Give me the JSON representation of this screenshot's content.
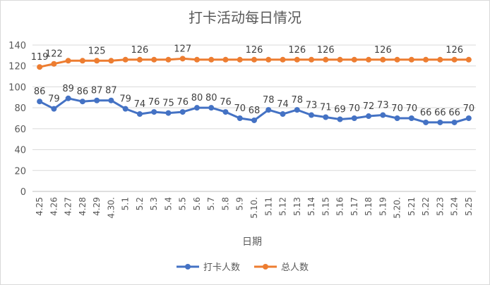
{
  "chart_data": {
    "type": "line",
    "title": "打卡活动每日情况",
    "xlabel": "日期",
    "ylabel": "",
    "ylim": [
      0,
      140
    ],
    "yticks": [
      0,
      20,
      40,
      60,
      80,
      100,
      120,
      140
    ],
    "grid": true,
    "legend": "bottom",
    "categories": [
      "4.25",
      "4.26",
      "4.27",
      "4.28",
      "4.29",
      "4.30.",
      "5.1",
      "5.2",
      "5.3",
      "5.4",
      "5.5",
      "5.6",
      "5.7",
      "5.8",
      "5.9",
      "5.10.",
      "5.11",
      "5.12",
      "5.13",
      "5.14",
      "5.15",
      "5.16",
      "5.17",
      "5.18",
      "5.19",
      "5.20.",
      "5.21",
      "5.22",
      "5.23",
      "5.24",
      "5.25"
    ],
    "series": [
      {
        "name": "打卡人数",
        "color": "#4472c4",
        "values": [
          86,
          79,
          89,
          86,
          87,
          87,
          79,
          74,
          76,
          75,
          76,
          80,
          80,
          76,
          70,
          68,
          78,
          74,
          78,
          73,
          71,
          69,
          70,
          72,
          73,
          70,
          70,
          66,
          66,
          66,
          70
        ],
        "labels": [
          "86",
          "79",
          "89",
          "86",
          "87",
          "87",
          "79",
          "74",
          "76",
          "75",
          "76",
          "80",
          "80",
          "76",
          "70",
          "68",
          "78",
          "74",
          "78",
          "73",
          "71",
          "69",
          "70",
          "72",
          "73",
          "70",
          "70",
          "66",
          "66",
          "66",
          "70"
        ]
      },
      {
        "name": "总人数",
        "color": "#ed7d31",
        "values": [
          119,
          122,
          125,
          125,
          125,
          125,
          126,
          126,
          126,
          126,
          127,
          126,
          126,
          126,
          126,
          126,
          126,
          126,
          126,
          126,
          126,
          126,
          126,
          126,
          126,
          126,
          126,
          126,
          126,
          126,
          126
        ],
        "labels": [
          "119",
          "122",
          "",
          "",
          "125",
          "",
          "",
          "126",
          "",
          "",
          "127",
          "",
          "",
          "",
          "",
          "126",
          "",
          "",
          "126",
          "",
          "126",
          "",
          "",
          "",
          "126",
          "",
          "",
          "",
          "",
          "126",
          ""
        ]
      }
    ]
  }
}
